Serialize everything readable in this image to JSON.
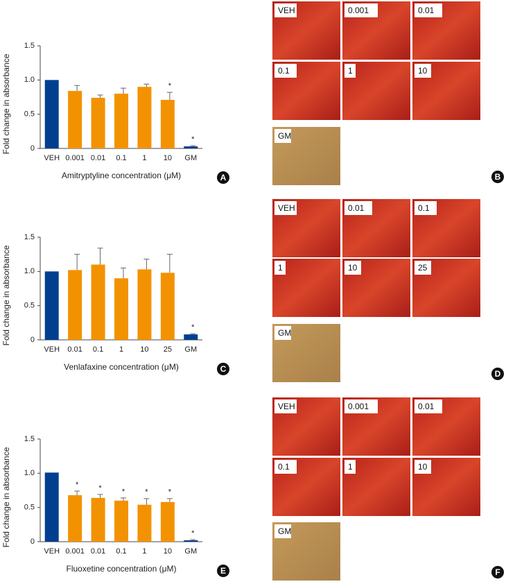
{
  "chart_data": [
    {
      "type": "bar",
      "panel_label": "A",
      "y_label": "Fold change in absorbance",
      "x_label": "Amitryptyline concentration (μM)",
      "categories": [
        "VEH",
        "0.001",
        "0.01",
        "0.1",
        "1",
        "10",
        "GM"
      ],
      "values": [
        1.0,
        0.84,
        0.74,
        0.8,
        0.9,
        0.71,
        0.03
      ],
      "errors": [
        0,
        0.08,
        0.04,
        0.08,
        0.04,
        0.11,
        0.01
      ],
      "significance": [
        null,
        null,
        null,
        null,
        null,
        "*",
        "*"
      ],
      "colors": [
        "#003f8f",
        "#f39200",
        "#f39200",
        "#f39200",
        "#f39200",
        "#f39200",
        "#003f8f"
      ],
      "ylim": [
        0,
        1.5
      ],
      "yticks": [
        0,
        0.5,
        {
          "value": 1,
          "label": "1.0"
        },
        {
          "value": 1.5,
          "label": "1.5"
        }
      ]
    },
    {
      "type": "bar",
      "panel_label": "C",
      "y_label": "Fold change in absorbance",
      "x_label": "Venlafaxine concentration (μM)",
      "categories": [
        "VEH",
        "0.01",
        "0.1",
        "1",
        "10",
        "25",
        "GM"
      ],
      "values": [
        1.0,
        1.02,
        1.1,
        0.9,
        1.03,
        0.98,
        0.08
      ],
      "errors": [
        0,
        0.23,
        0.24,
        0.15,
        0.15,
        0.27,
        0.01
      ],
      "significance": [
        null,
        null,
        null,
        null,
        null,
        null,
        "*"
      ],
      "colors": [
        "#003f8f",
        "#f39200",
        "#f39200",
        "#f39200",
        "#f39200",
        "#f39200",
        "#003f8f"
      ],
      "ylim": [
        0,
        1.5
      ],
      "yticks": [
        0,
        0.5,
        {
          "value": 1,
          "label": "1.0"
        },
        {
          "value": 1.5,
          "label": "1.5"
        }
      ]
    },
    {
      "type": "bar",
      "panel_label": "E",
      "y_label": "Fold change in absorbance",
      "x_label": "Fluoxetine concentration (μM)",
      "categories": [
        "VEH",
        "0.001",
        "0.01",
        "0.1",
        "1",
        "10",
        "GM"
      ],
      "values": [
        1.01,
        0.68,
        0.64,
        0.6,
        0.54,
        0.58,
        0.02
      ],
      "errors": [
        0,
        0.06,
        0.05,
        0.04,
        0.09,
        0.05,
        0.01
      ],
      "significance": [
        null,
        "*",
        "*",
        "*",
        "*",
        "*",
        "*"
      ],
      "colors": [
        "#003f8f",
        "#f39200",
        "#f39200",
        "#f39200",
        "#f39200",
        "#f39200",
        "#003f8f"
      ],
      "ylim": [
        0,
        1.5
      ],
      "yticks": [
        0,
        0.5,
        {
          "value": 1,
          "label": "1.0"
        },
        {
          "value": 1.5,
          "label": "1.5"
        }
      ]
    }
  ],
  "image_panels": [
    {
      "panel_label": "B",
      "tiles": [
        "VEH",
        "0.001",
        "0.01",
        "0.1",
        "1",
        "10",
        "GM"
      ]
    },
    {
      "panel_label": "D",
      "tiles": [
        "VEH",
        "0.01",
        "0.1",
        "1",
        "10",
        "25",
        "GM"
      ]
    },
    {
      "panel_label": "F",
      "tiles": [
        "VEH",
        "0.001",
        "0.01",
        "0.1",
        "1",
        "10",
        "GM"
      ]
    }
  ]
}
